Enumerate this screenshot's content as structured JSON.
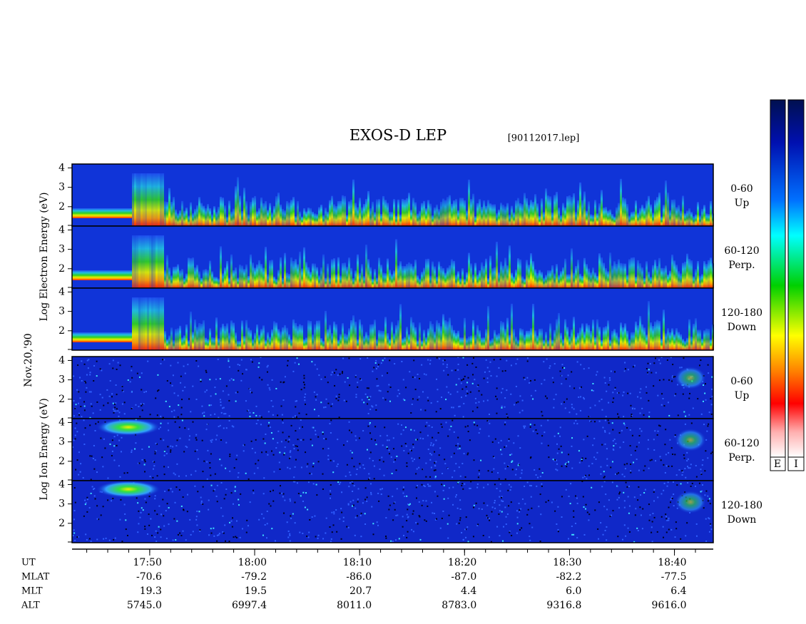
{
  "title": "EXOS-D LEP",
  "file": "[90112017.lep]",
  "date": "Nov.20,'90",
  "electron_axis_label": "Log Electron Energy (eV)",
  "ion_axis_label": "Log Ion Energy (eV)",
  "energy_range": [
    1,
    4.2
  ],
  "energy_ticks": [
    2,
    3,
    4
  ],
  "panels": [
    {
      "pitch": "0-60",
      "direction": "Up"
    },
    {
      "pitch": "60-120",
      "direction": "Perp."
    },
    {
      "pitch": "120-180",
      "direction": "Down"
    },
    {
      "pitch": "0-60",
      "direction": "Up"
    },
    {
      "pitch": "60-120",
      "direction": "Perp."
    },
    {
      "pitch": "120-180",
      "direction": "Down"
    }
  ],
  "time_axis": {
    "range": [
      1062.6,
      1123.7
    ],
    "ticks": [
      {
        "value": 1070,
        "label": "17:50"
      },
      {
        "value": 1080,
        "label": "18:00"
      },
      {
        "value": 1090,
        "label": "18:10"
      },
      {
        "value": 1100,
        "label": "18:20"
      },
      {
        "value": 1110,
        "label": "18:30"
      },
      {
        "value": 1120,
        "label": "18:40"
      }
    ]
  },
  "orbit_table": {
    "row_labels": [
      "UT",
      "MLAT",
      "MLT",
      "ALT"
    ],
    "rows": [
      [
        "-70.6",
        "-79.2",
        "-86.0",
        "-87.0",
        "-82.2",
        "-77.5"
      ],
      [
        "19.3",
        "19.5",
        "20.7",
        "4.4",
        "6.0",
        "6.4"
      ],
      [
        "5745.0",
        "6997.4",
        "8011.0",
        "8783.0",
        "9316.8",
        "9616.0"
      ]
    ]
  },
  "colorbar_labels": [
    "E",
    "I"
  ]
}
